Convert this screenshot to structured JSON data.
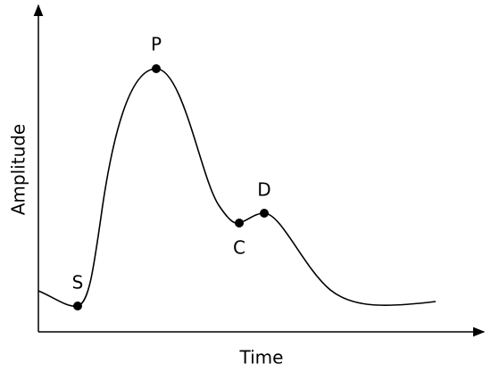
{
  "axes": {
    "x_label": "Time",
    "y_label": "Amplitude"
  },
  "points": [
    {
      "label": "S"
    },
    {
      "label": "P"
    },
    {
      "label": "C"
    },
    {
      "label": "D"
    }
  ]
}
